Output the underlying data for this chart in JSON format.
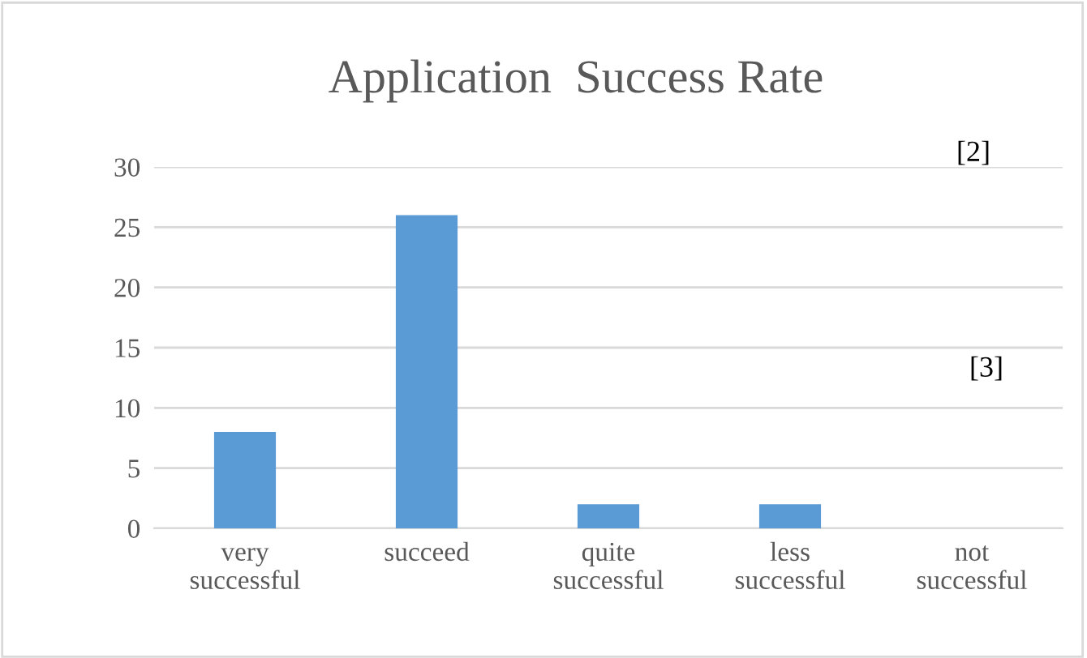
{
  "chart_data": {
    "type": "bar",
    "title": "Application  Success Rate",
    "categories": [
      "very\nsuccessful",
      "succeed",
      "quite\nsuccessful",
      "less\nsuccessful",
      "not\nsuccessful"
    ],
    "values": [
      8,
      26,
      2,
      2,
      0
    ],
    "color": "#5b9bd5",
    "ylim": [
      0,
      30
    ],
    "yticks": [
      0,
      5,
      10,
      15,
      20,
      25,
      30
    ],
    "grid": "y",
    "annotations": [
      "[2]",
      "[3]"
    ]
  }
}
